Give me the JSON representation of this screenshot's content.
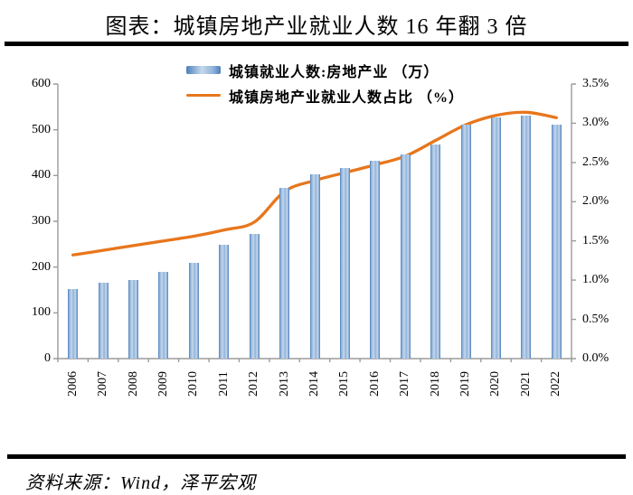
{
  "title": "图表：城镇房地产业就业人数 16 年翻 3 倍",
  "source": "资料来源：Wind，泽平宏观",
  "legend": {
    "bar_label": "城镇就业人数:房地产业 （万）",
    "line_label": "城镇房地产业就业人数占比 （%）"
  },
  "colors": {
    "bar_edge": "#4c7fba",
    "bar_mid": "#8fb3da",
    "bar_light": "#c6d8ec",
    "line": "#e8761c",
    "axis": "#9b9b9b",
    "rule": "#000000",
    "text": "#000000"
  },
  "chart_data": {
    "type": "bar+line combo",
    "categories": [
      "2006",
      "2007",
      "2008",
      "2009",
      "2010",
      "2011",
      "2012",
      "2013",
      "2014",
      "2015",
      "2016",
      "2017",
      "2018",
      "2019",
      "2020",
      "2021",
      "2022"
    ],
    "series": [
      {
        "name": "城镇就业人数:房地产业 （万）",
        "type": "bar",
        "yaxis": "left",
        "values": [
          152,
          166,
          171,
          190,
          210,
          248,
          273,
          373,
          403,
          417,
          432,
          446,
          467,
          511,
          526,
          531,
          511
        ]
      },
      {
        "name": "城镇房地产业就业人数占比 （%）",
        "type": "line",
        "yaxis": "right",
        "values": [
          1.32,
          1.38,
          1.44,
          1.5,
          1.56,
          1.64,
          1.74,
          2.13,
          2.27,
          2.37,
          2.47,
          2.58,
          2.78,
          2.98,
          3.1,
          3.14,
          3.07
        ]
      }
    ],
    "left_axis": {
      "min": 0,
      "max": 600,
      "tick_step": 100,
      "tick_labels": [
        "600",
        "500",
        "400",
        "300",
        "200",
        "100",
        "0"
      ]
    },
    "right_axis": {
      "min": 0,
      "max": 3.5,
      "tick_step": 0.5,
      "tick_labels": [
        "3.5%",
        "3.0%",
        "2.5%",
        "2.0%",
        "1.5%",
        "1.0%",
        "0.5%",
        "0.0%"
      ]
    },
    "grid": "off",
    "legend_position": "top-center-inside"
  }
}
